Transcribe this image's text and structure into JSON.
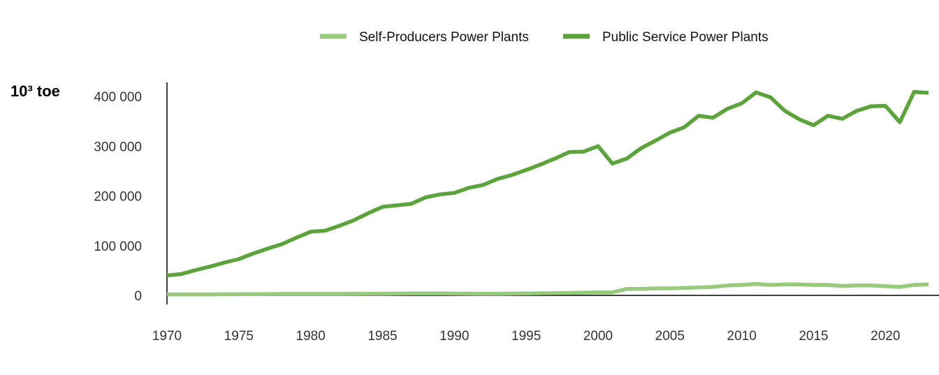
{
  "chart_data": {
    "type": "line",
    "title": "",
    "xlabel": "",
    "ylabel": "10³ toe",
    "xlim": [
      1970,
      2023
    ],
    "ylim": [
      0,
      430000
    ],
    "grid": false,
    "legend_position": "top-center",
    "x_ticks": [
      "1970",
      "1975",
      "1980",
      "1985",
      "1990",
      "1995",
      "2000",
      "2005",
      "2010",
      "2015",
      "2020"
    ],
    "y_ticks": [
      "0",
      "100 000",
      "200 000",
      "300 000",
      "400 000"
    ],
    "y_tick_values": [
      0,
      100000,
      200000,
      300000,
      400000
    ],
    "x": [
      1970,
      1971,
      1972,
      1973,
      1974,
      1975,
      1976,
      1977,
      1978,
      1979,
      1980,
      1981,
      1982,
      1983,
      1984,
      1985,
      1986,
      1987,
      1988,
      1989,
      1990,
      1991,
      1992,
      1993,
      1994,
      1995,
      1996,
      1997,
      1998,
      1999,
      2000,
      2001,
      2002,
      2003,
      2004,
      2005,
      2006,
      2007,
      2008,
      2009,
      2010,
      2011,
      2012,
      2013,
      2014,
      2015,
      2016,
      2017,
      2018,
      2019,
      2020,
      2021,
      2022,
      2023
    ],
    "series": [
      {
        "name": "Self-Producers Power Plants",
        "color": "#97cb7b",
        "values": [
          2000,
          2000,
          2000,
          2000,
          2200,
          2300,
          2500,
          2700,
          2900,
          3000,
          3000,
          3000,
          3000,
          3200,
          3300,
          3400,
          3600,
          3800,
          3900,
          3900,
          3700,
          3500,
          3300,
          3400,
          3600,
          3900,
          4200,
          4600,
          5000,
          5500,
          6000,
          6000,
          13000,
          13000,
          14000,
          14000,
          15000,
          16000,
          17000,
          20000,
          21000,
          23000,
          21000,
          22000,
          22000,
          21000,
          21000,
          19000,
          20000,
          20000,
          18500,
          17000,
          21000,
          22000
        ]
      },
      {
        "name": "Public Service Power Plants",
        "color": "#5da33b",
        "values": [
          40000,
          43000,
          51000,
          58000,
          66000,
          73000,
          84000,
          94000,
          103000,
          116000,
          128000,
          130000,
          140000,
          151000,
          165000,
          178000,
          181000,
          184000,
          197000,
          203000,
          206000,
          216000,
          222000,
          234000,
          242000,
          252000,
          263000,
          275000,
          288000,
          289000,
          300000,
          265000,
          275000,
          296000,
          311000,
          327000,
          338000,
          361000,
          357000,
          375000,
          386000,
          408000,
          398000,
          371000,
          354000,
          342000,
          361000,
          355000,
          371000,
          380000,
          381000,
          348000,
          409000,
          407000
        ]
      }
    ]
  }
}
